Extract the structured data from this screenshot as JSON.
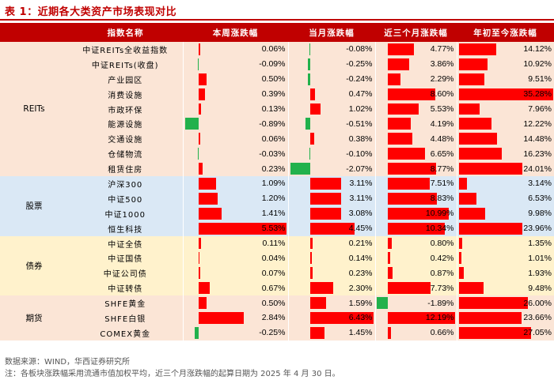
{
  "title": "表 1：近期各大类资产市场表现对比",
  "headers": [
    "指数名称",
    "本周涨跌幅",
    "当月涨跌幅",
    "近三个月涨跌幅",
    "年初至今涨跌幅"
  ],
  "colors": {
    "accent": "#c00000",
    "positive": "#ff0000",
    "negative": "#22b14c",
    "reits_bg": "#fbe5d6",
    "stock_bg": "#dae8f5",
    "bond_bg": "#fff2cc",
    "futures_bg": "#fbe5d6"
  },
  "groups": [
    {
      "id": "reits",
      "label": "REITs",
      "rows": [
        {
          "name": "中证REITs全收益指数",
          "values": [
            0.06,
            -0.08,
            4.77,
            14.12
          ],
          "labels": [
            "0.06%",
            "-0.08%",
            "4.77%",
            "14.12%"
          ]
        },
        {
          "name": "中证REITs(收盘)",
          "values": [
            -0.09,
            -0.25,
            3.86,
            10.92
          ],
          "labels": [
            "-0.09%",
            "-0.25%",
            "3.86%",
            "10.92%"
          ]
        },
        {
          "name": "产业园区",
          "values": [
            0.5,
            -0.24,
            2.29,
            9.51
          ],
          "labels": [
            "0.50%",
            "-0.24%",
            "2.29%",
            "9.51%"
          ]
        },
        {
          "name": "消费设施",
          "values": [
            0.39,
            0.47,
            8.6,
            35.28
          ],
          "labels": [
            "0.39%",
            "0.47%",
            "8.60%",
            "35.28%"
          ]
        },
        {
          "name": "市政环保",
          "values": [
            0.13,
            1.02,
            5.53,
            7.96
          ],
          "labels": [
            "0.13%",
            "1.02%",
            "5.53%",
            "7.96%"
          ]
        },
        {
          "name": "能源设施",
          "values": [
            -0.89,
            -0.51,
            4.19,
            12.22
          ],
          "labels": [
            "-0.89%",
            "-0.51%",
            "4.19%",
            "12.22%"
          ]
        },
        {
          "name": "交通设施",
          "values": [
            0.06,
            0.38,
            4.48,
            14.48
          ],
          "labels": [
            "0.06%",
            "0.38%",
            "4.48%",
            "14.48%"
          ]
        },
        {
          "name": "仓储物流",
          "values": [
            -0.03,
            -0.1,
            6.65,
            16.23
          ],
          "labels": [
            "-0.03%",
            "-0.10%",
            "6.65%",
            "16.23%"
          ]
        },
        {
          "name": "租赁住房",
          "values": [
            0.23,
            -2.07,
            8.77,
            24.01
          ],
          "labels": [
            "0.23%",
            "-2.07%",
            "8.77%",
            "24.01%"
          ]
        }
      ]
    },
    {
      "id": "stock",
      "label": "股票",
      "rows": [
        {
          "name": "沪深300",
          "values": [
            1.09,
            3.11,
            7.51,
            3.14
          ],
          "labels": [
            "1.09%",
            "3.11%",
            "7.51%",
            "3.14%"
          ]
        },
        {
          "name": "中证500",
          "values": [
            1.2,
            3.11,
            8.83,
            6.53
          ],
          "labels": [
            "1.20%",
            "3.11%",
            "8.83%",
            "6.53%"
          ]
        },
        {
          "name": "中证1000",
          "values": [
            1.41,
            3.08,
            10.99,
            9.98
          ],
          "labels": [
            "1.41%",
            "3.08%",
            "10.99%",
            "9.98%"
          ]
        },
        {
          "name": "恒生科技",
          "values": [
            5.53,
            4.45,
            10.34,
            23.96
          ],
          "labels": [
            "5.53%",
            "4.45%",
            "10.34%",
            "23.96%"
          ]
        }
      ]
    },
    {
      "id": "bond",
      "label": "债券",
      "rows": [
        {
          "name": "中证全债",
          "values": [
            0.11,
            0.21,
            0.8,
            1.35
          ],
          "labels": [
            "0.11%",
            "0.21%",
            "0.80%",
            "1.35%"
          ]
        },
        {
          "name": "中证国债",
          "values": [
            0.04,
            0.14,
            0.42,
            1.01
          ],
          "labels": [
            "0.04%",
            "0.14%",
            "0.42%",
            "1.01%"
          ]
        },
        {
          "name": "中证公司债",
          "values": [
            0.07,
            0.23,
            0.87,
            1.93
          ],
          "labels": [
            "0.07%",
            "0.23%",
            "0.87%",
            "1.93%"
          ]
        },
        {
          "name": "中证转债",
          "values": [
            0.67,
            2.3,
            7.73,
            9.48
          ],
          "labels": [
            "0.67%",
            "2.30%",
            "7.73%",
            "9.48%"
          ]
        }
      ]
    },
    {
      "id": "fut",
      "label": "期货",
      "rows": [
        {
          "name": "SHFE黄金",
          "values": [
            0.5,
            1.59,
            -1.89,
            26.0
          ],
          "labels": [
            "0.50%",
            "1.59%",
            "-1.89%",
            "26.00%"
          ]
        },
        {
          "name": "SHFE白银",
          "values": [
            2.84,
            6.43,
            12.19,
            23.66
          ],
          "labels": [
            "2.84%",
            "6.43%",
            "12.19%",
            "23.66%"
          ]
        },
        {
          "name": "COMEX黄金",
          "values": [
            -0.25,
            1.45,
            0.66,
            27.05
          ],
          "labels": [
            "-0.25%",
            "1.45%",
            "0.66%",
            "27.05%"
          ]
        }
      ]
    }
  ],
  "footer": {
    "source": "数据来源：WIND，华西证券研究所",
    "note": "注：各板块涨跌幅采用流通市值加权平均，近三个月涨跌幅的起算日期为 2025 年 4 月 30 日。"
  }
}
